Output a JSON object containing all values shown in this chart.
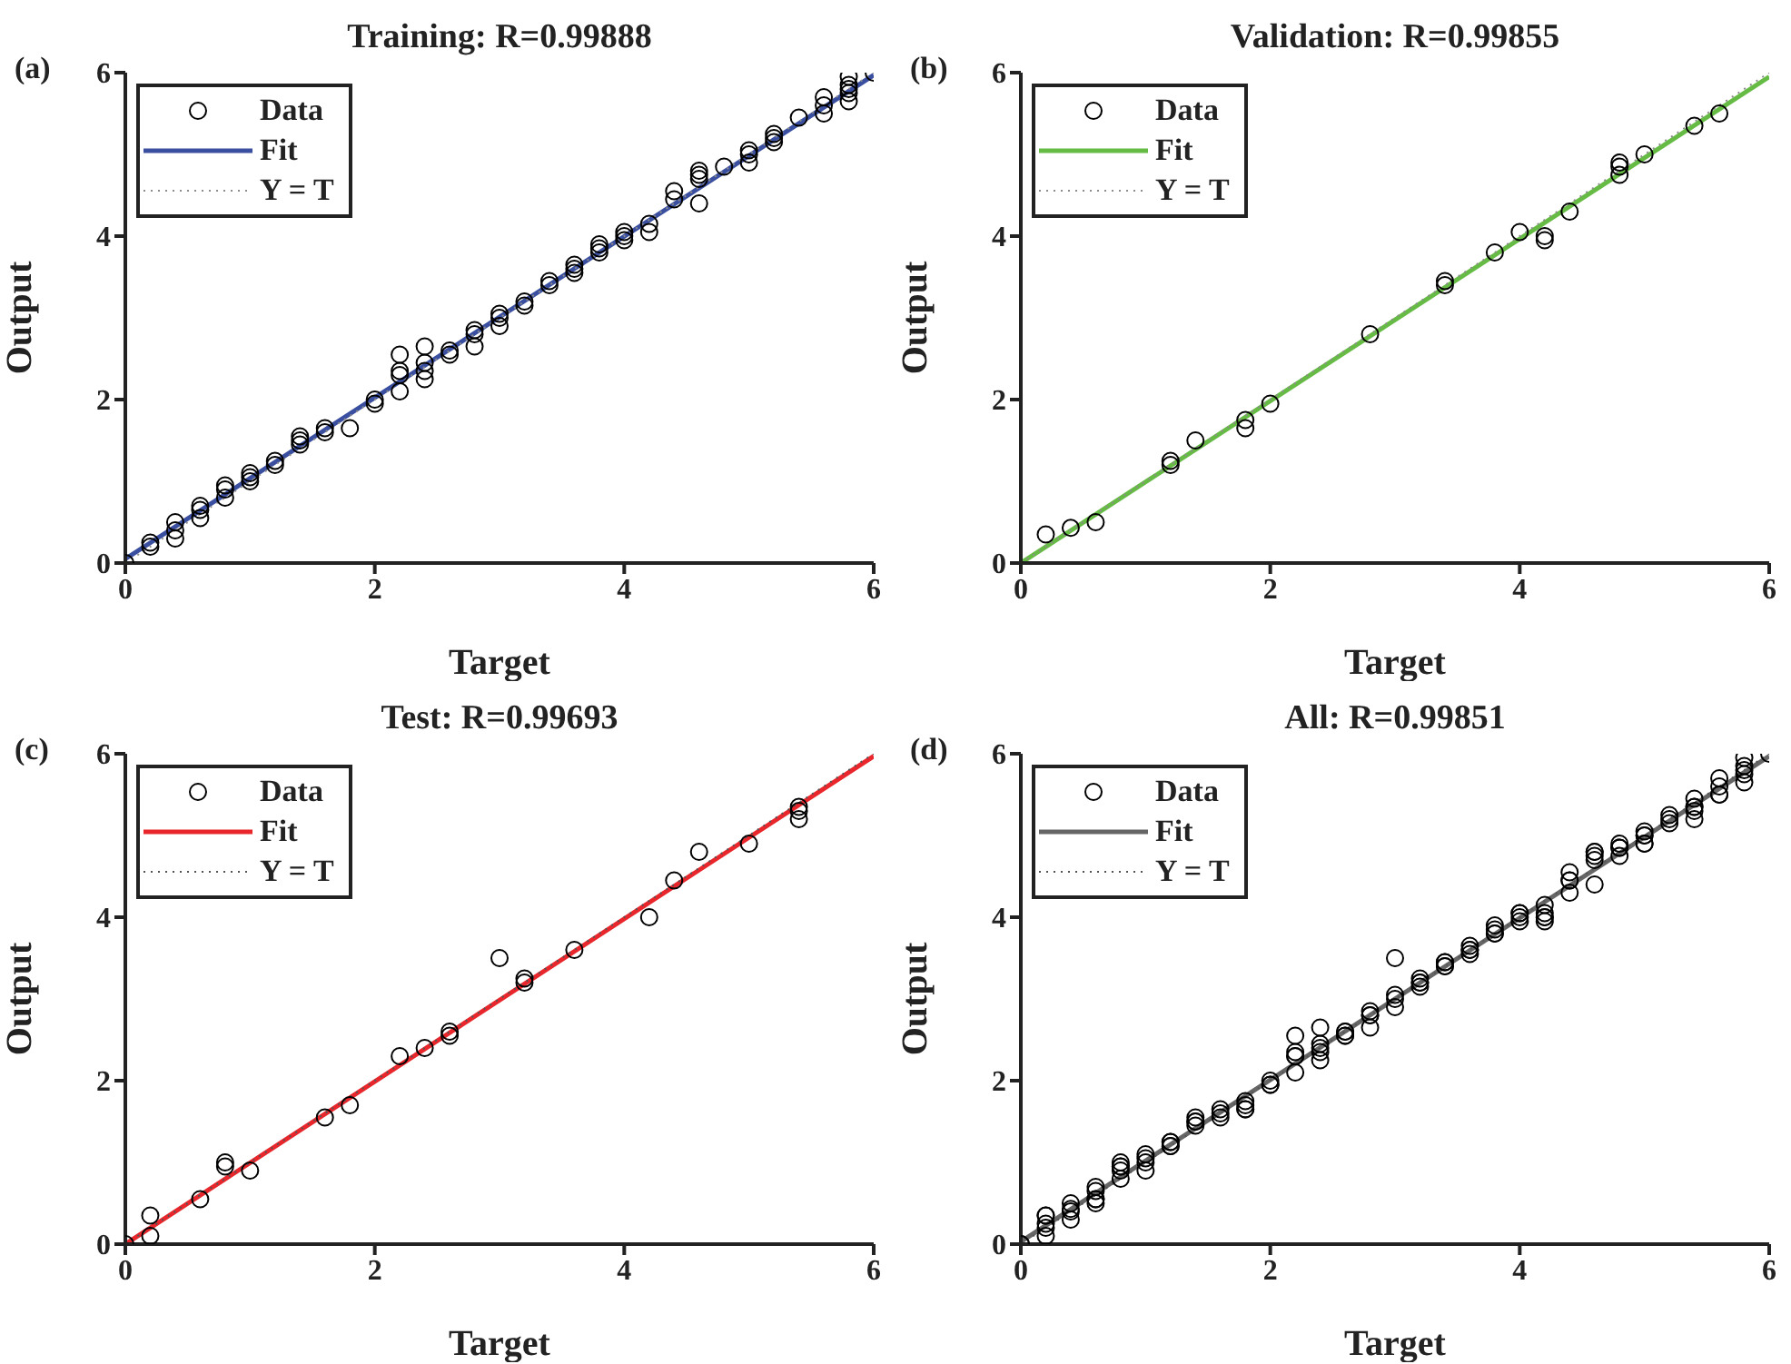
{
  "chart_data": [
    {
      "type": "scatter",
      "title": "Training: R=0.99888",
      "xlabel": "Target",
      "ylabel": "Output",
      "annotations": [
        "(a)"
      ],
      "xlim": [
        0,
        6
      ],
      "ylim": [
        0,
        6
      ],
      "xticks": [
        0,
        2,
        4,
        6
      ],
      "yticks": [
        0,
        2,
        4,
        6
      ],
      "legend": "top left",
      "series": [
        {
          "name": "Data",
          "type": "scatter",
          "marker": "circle",
          "color": "#000000",
          "x": [
            0,
            0.2,
            0.2,
            0.4,
            0.4,
            0.4,
            0.6,
            0.6,
            0.6,
            0.8,
            0.8,
            0.8,
            1.0,
            1.0,
            1.0,
            1.2,
            1.2,
            1.4,
            1.4,
            1.4,
            1.6,
            1.6,
            1.8,
            2.0,
            2.0,
            2.2,
            2.2,
            2.2,
            2.2,
            2.4,
            2.4,
            2.4,
            2.4,
            2.6,
            2.6,
            2.8,
            2.8,
            2.8,
            3.0,
            3.0,
            3.0,
            3.2,
            3.2,
            3.4,
            3.4,
            3.6,
            3.6,
            3.6,
            3.8,
            3.8,
            3.8,
            4.0,
            4.0,
            4.0,
            4.2,
            4.2,
            4.4,
            4.4,
            4.6,
            4.6,
            4.6,
            4.6,
            4.8,
            5.0,
            5.0,
            5.0,
            5.2,
            5.2,
            5.2,
            5.4,
            5.6,
            5.6,
            5.6,
            5.8,
            5.8,
            5.8,
            5.8,
            5.8,
            6.0
          ],
          "values": [
            0,
            0.2,
            0.25,
            0.3,
            0.4,
            0.5,
            0.55,
            0.65,
            0.7,
            0.8,
            0.9,
            0.95,
            1.0,
            1.05,
            1.1,
            1.2,
            1.25,
            1.45,
            1.5,
            1.55,
            1.6,
            1.65,
            1.65,
            1.95,
            2.0,
            2.1,
            2.3,
            2.35,
            2.55,
            2.25,
            2.35,
            2.45,
            2.65,
            2.55,
            2.6,
            2.65,
            2.8,
            2.85,
            2.9,
            3.0,
            3.05,
            3.15,
            3.2,
            3.4,
            3.45,
            3.55,
            3.6,
            3.65,
            3.8,
            3.85,
            3.9,
            3.95,
            4.0,
            4.05,
            4.05,
            4.15,
            4.45,
            4.55,
            4.4,
            4.7,
            4.75,
            4.8,
            4.85,
            4.9,
            5.0,
            5.05,
            5.15,
            5.2,
            5.25,
            5.45,
            5.5,
            5.6,
            5.7,
            5.65,
            5.75,
            5.8,
            5.85,
            5.95,
            6.0
          ]
        },
        {
          "name": "Fit",
          "type": "line",
          "color": "#3a4fa0",
          "x": [
            0,
            6
          ],
          "values": [
            0.05,
            5.97
          ]
        },
        {
          "name": "Y = T",
          "type": "line",
          "line_style": "dotted",
          "color": "#8c8c8c",
          "x": [
            0,
            6
          ],
          "values": [
            0,
            6
          ]
        }
      ]
    },
    {
      "type": "scatter",
      "title": "Validation: R=0.99855",
      "xlabel": "Target",
      "ylabel": "Output",
      "annotations": [
        "(b)"
      ],
      "xlim": [
        0,
        6
      ],
      "ylim": [
        0,
        6
      ],
      "xticks": [
        0,
        2,
        4,
        6
      ],
      "yticks": [
        0,
        2,
        4,
        6
      ],
      "legend": "top left",
      "series": [
        {
          "name": "Data",
          "type": "scatter",
          "marker": "circle",
          "color": "#000000",
          "x": [
            0.2,
            0.4,
            0.6,
            1.2,
            1.2,
            1.4,
            1.8,
            1.8,
            2.0,
            2.8,
            3.4,
            3.4,
            3.8,
            4.0,
            4.2,
            4.2,
            4.4,
            4.8,
            4.8,
            4.8,
            5.0,
            5.4,
            5.6
          ],
          "values": [
            0.35,
            0.43,
            0.5,
            1.2,
            1.25,
            1.5,
            1.65,
            1.75,
            1.95,
            2.8,
            3.4,
            3.45,
            3.8,
            4.05,
            3.95,
            4.0,
            4.3,
            4.75,
            4.85,
            4.9,
            5.0,
            5.35,
            5.5
          ]
        },
        {
          "name": "Fit",
          "type": "line",
          "color": "#66bb44",
          "x": [
            0,
            6
          ],
          "values": [
            0,
            5.95
          ]
        },
        {
          "name": "Y = T",
          "type": "line",
          "line_style": "dotted",
          "color": "#8c8c8c",
          "x": [
            0,
            6
          ],
          "values": [
            0,
            6
          ]
        }
      ]
    },
    {
      "type": "scatter",
      "title": "Test: R=0.99693",
      "xlabel": "Target",
      "ylabel": "Output",
      "annotations": [
        "(c)"
      ],
      "xlim": [
        0,
        6
      ],
      "ylim": [
        0,
        6
      ],
      "xticks": [
        0,
        2,
        4,
        6
      ],
      "yticks": [
        0,
        2,
        4,
        6
      ],
      "legend": "top left",
      "series": [
        {
          "name": "Data",
          "type": "scatter",
          "marker": "circle",
          "color": "#000000",
          "x": [
            0,
            0.2,
            0.2,
            0.6,
            0.8,
            0.8,
            1.0,
            1.6,
            1.8,
            2.2,
            2.4,
            2.6,
            2.6,
            3.0,
            3.2,
            3.2,
            3.6,
            4.2,
            4.4,
            4.6,
            5.0,
            5.4,
            5.4,
            5.4
          ],
          "values": [
            0,
            0.1,
            0.35,
            0.55,
            0.95,
            1.0,
            0.9,
            1.55,
            1.7,
            2.3,
            2.4,
            2.55,
            2.6,
            3.5,
            3.2,
            3.25,
            3.6,
            4.0,
            4.45,
            4.8,
            4.9,
            5.2,
            5.3,
            5.35
          ]
        },
        {
          "name": "Fit",
          "type": "line",
          "color": "#e8262b",
          "x": [
            0,
            6
          ],
          "values": [
            0,
            5.97
          ]
        },
        {
          "name": "Y = T",
          "type": "line",
          "line_style": "dotted",
          "color": "#555555",
          "x": [
            0,
            6
          ],
          "values": [
            0,
            6
          ]
        }
      ]
    },
    {
      "type": "scatter",
      "title": "All: R=0.99851",
      "xlabel": "Target",
      "ylabel": "Output",
      "annotations": [
        "(d)"
      ],
      "xlim": [
        0,
        6
      ],
      "ylim": [
        0,
        6
      ],
      "xticks": [
        0,
        2,
        4,
        6
      ],
      "yticks": [
        0,
        2,
        4,
        6
      ],
      "legend": "top left",
      "series": [
        {
          "name": "Data",
          "type": "scatter",
          "marker": "circle",
          "color": "#000000",
          "x": [
            0,
            0.2,
            0.2,
            0.4,
            0.4,
            0.4,
            0.6,
            0.6,
            0.6,
            0.8,
            0.8,
            0.8,
            1.0,
            1.0,
            1.0,
            1.2,
            1.2,
            1.4,
            1.4,
            1.4,
            1.6,
            1.6,
            1.8,
            2.0,
            2.0,
            2.2,
            2.2,
            2.2,
            2.2,
            2.4,
            2.4,
            2.4,
            2.4,
            2.6,
            2.6,
            2.8,
            2.8,
            2.8,
            3.0,
            3.0,
            3.0,
            3.2,
            3.2,
            3.4,
            3.4,
            3.6,
            3.6,
            3.6,
            3.8,
            3.8,
            3.8,
            4.0,
            4.0,
            4.0,
            4.2,
            4.2,
            4.4,
            4.4,
            4.6,
            4.6,
            4.6,
            4.6,
            4.8,
            5.0,
            5.0,
            5.0,
            5.2,
            5.2,
            5.2,
            5.4,
            5.6,
            5.6,
            5.6,
            5.8,
            5.8,
            5.8,
            5.8,
            5.8,
            6.0,
            0.2,
            0.4,
            0.6,
            1.2,
            1.2,
            1.4,
            1.8,
            1.8,
            2.0,
            2.8,
            3.4,
            3.4,
            3.8,
            4.0,
            4.2,
            4.2,
            4.4,
            4.8,
            4.8,
            4.8,
            5.0,
            5.4,
            5.6,
            0,
            0.2,
            0.2,
            0.6,
            0.8,
            0.8,
            1.0,
            1.6,
            1.8,
            2.2,
            2.4,
            2.6,
            2.6,
            3.0,
            3.2,
            3.2,
            3.6,
            4.2,
            4.4,
            4.6,
            5.0,
            5.4,
            5.4,
            5.4
          ],
          "values": [
            0,
            0.2,
            0.25,
            0.3,
            0.4,
            0.5,
            0.55,
            0.65,
            0.7,
            0.8,
            0.9,
            0.95,
            1.0,
            1.05,
            1.1,
            1.2,
            1.25,
            1.45,
            1.5,
            1.55,
            1.6,
            1.65,
            1.65,
            1.95,
            2.0,
            2.1,
            2.3,
            2.35,
            2.55,
            2.25,
            2.35,
            2.45,
            2.65,
            2.55,
            2.6,
            2.65,
            2.8,
            2.85,
            2.9,
            3.0,
            3.05,
            3.15,
            3.2,
            3.4,
            3.45,
            3.55,
            3.6,
            3.65,
            3.8,
            3.85,
            3.9,
            3.95,
            4.0,
            4.05,
            4.05,
            4.15,
            4.45,
            4.55,
            4.4,
            4.7,
            4.75,
            4.8,
            4.85,
            4.9,
            5.0,
            5.05,
            5.15,
            5.2,
            5.25,
            5.45,
            5.5,
            5.6,
            5.7,
            5.65,
            5.75,
            5.8,
            5.85,
            5.95,
            6.0,
            0.35,
            0.43,
            0.5,
            1.2,
            1.25,
            1.5,
            1.65,
            1.75,
            1.95,
            2.8,
            3.4,
            3.45,
            3.8,
            4.05,
            3.95,
            4.0,
            4.3,
            4.75,
            4.85,
            4.9,
            5.0,
            5.35,
            5.5,
            0,
            0.1,
            0.35,
            0.55,
            0.95,
            1.0,
            0.9,
            1.55,
            1.7,
            2.3,
            2.4,
            2.55,
            2.6,
            3.5,
            3.2,
            3.25,
            3.6,
            4.0,
            4.45,
            4.8,
            4.9,
            5.2,
            5.3,
            5.35
          ]
        },
        {
          "name": "Fit",
          "type": "line",
          "color": "#666666",
          "x": [
            0,
            6
          ],
          "values": [
            0.03,
            5.97
          ]
        },
        {
          "name": "Y = T",
          "type": "line",
          "line_style": "dotted",
          "color": "#555555",
          "x": [
            0,
            6
          ],
          "values": [
            0,
            6
          ]
        }
      ]
    }
  ]
}
